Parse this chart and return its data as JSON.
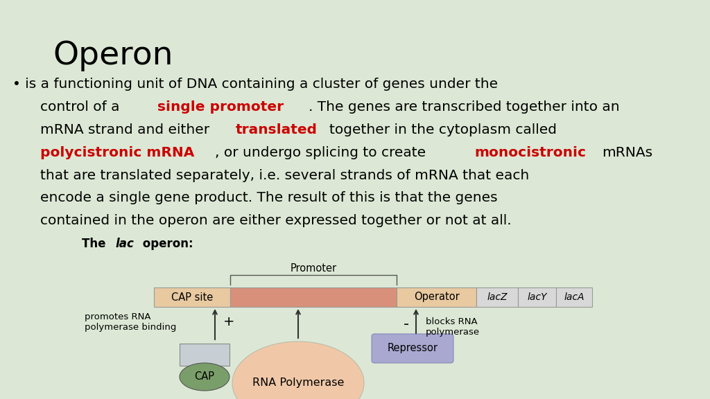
{
  "background_color": "#dce8d5",
  "title": "Operon",
  "title_fontsize": 34,
  "fs": 14.5,
  "cap_site_color": "#e8c9a0",
  "promoter_region_color": "#d9907a",
  "operator_color": "#e8c9a0",
  "lacz_color": "#d8d8d8",
  "lacy_color": "#d8d8d8",
  "laca_color": "#d8d8d8",
  "cap_body_color": "#7a9e6a",
  "cap_top_color": "#c8cfd4",
  "rna_pol_color": "#f0c8a8",
  "repressor_color": "#a8a8d0",
  "promoter_label": "Promoter",
  "cap_site_label": "CAP site",
  "operator_label": "Operator",
  "lacz_label": "lacZ",
  "lacy_label": "lacY",
  "laca_label": "lacA",
  "cap_label": "CAP",
  "rna_pol_label": "RNA Polymerase",
  "repressor_label": "Repressor",
  "promotes_text": "promotes RNA\npolymerase binding",
  "blocks_text": "blocks RNA\npolymerase"
}
